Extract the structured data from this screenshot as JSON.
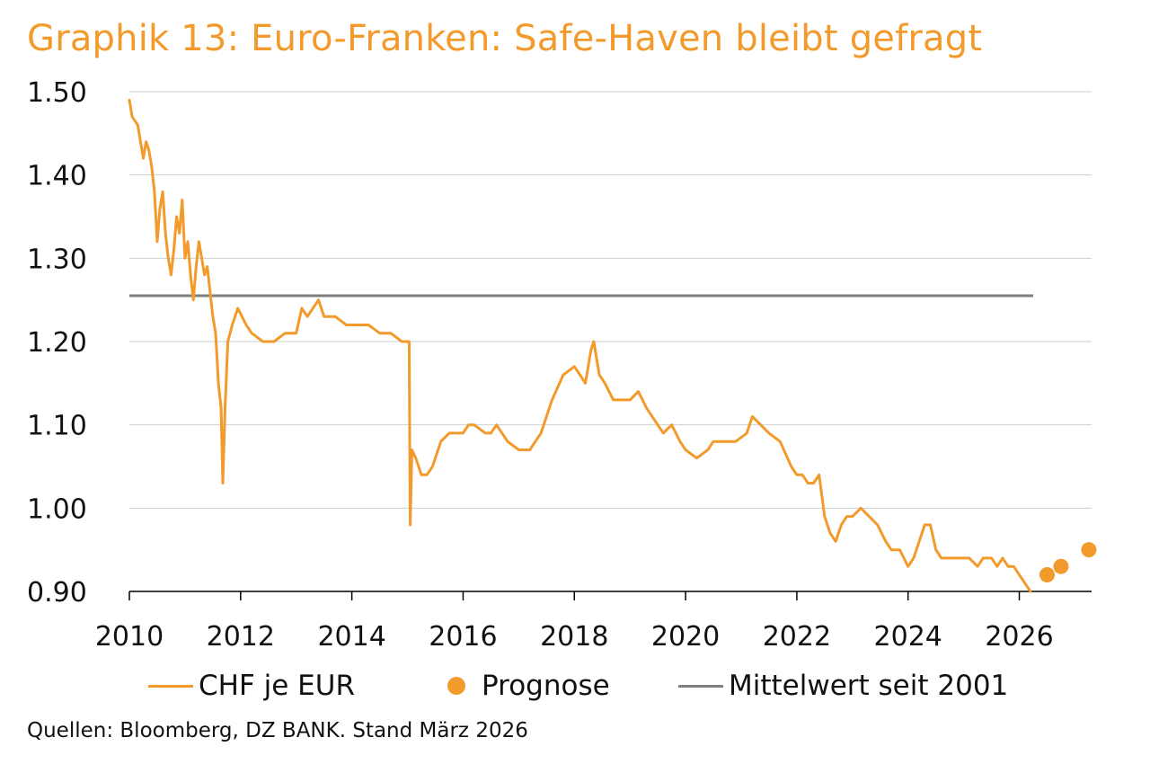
{
  "chart_data": {
    "type": "line",
    "title": "Graphik 13: Euro-Franken: Safe-Haven bleibt gefragt",
    "source": "Quellen: Bloomberg, DZ BANK. Stand März 2026",
    "xlim": [
      2010,
      2027.3
    ],
    "ylim": [
      0.9,
      1.5
    ],
    "x_ticks": [
      "2010",
      "2012",
      "2014",
      "2016",
      "2018",
      "2020",
      "2022",
      "2024",
      "2026"
    ],
    "y_ticks": [
      "1.50",
      "1.40",
      "1.30",
      "1.20",
      "1.10",
      "1.00",
      "0.90"
    ],
    "grid": true,
    "legend_position": "bottom",
    "colors": {
      "main": "#f39a2c",
      "mean": "#7f7f7f"
    },
    "series": [
      {
        "name": "CHF je EUR",
        "kind": "line",
        "points": [
          [
            2010.0,
            1.49
          ],
          [
            2010.05,
            1.47
          ],
          [
            2010.15,
            1.46
          ],
          [
            2010.2,
            1.44
          ],
          [
            2010.25,
            1.42
          ],
          [
            2010.3,
            1.44
          ],
          [
            2010.35,
            1.43
          ],
          [
            2010.4,
            1.41
          ],
          [
            2010.45,
            1.38
          ],
          [
            2010.5,
            1.32
          ],
          [
            2010.55,
            1.36
          ],
          [
            2010.6,
            1.38
          ],
          [
            2010.65,
            1.33
          ],
          [
            2010.7,
            1.3
          ],
          [
            2010.75,
            1.28
          ],
          [
            2010.8,
            1.31
          ],
          [
            2010.85,
            1.35
          ],
          [
            2010.9,
            1.33
          ],
          [
            2010.95,
            1.37
          ],
          [
            2011.0,
            1.3
          ],
          [
            2011.05,
            1.32
          ],
          [
            2011.1,
            1.28
          ],
          [
            2011.15,
            1.25
          ],
          [
            2011.2,
            1.29
          ],
          [
            2011.25,
            1.32
          ],
          [
            2011.3,
            1.3
          ],
          [
            2011.35,
            1.28
          ],
          [
            2011.4,
            1.29
          ],
          [
            2011.45,
            1.26
          ],
          [
            2011.5,
            1.23
          ],
          [
            2011.55,
            1.21
          ],
          [
            2011.6,
            1.15
          ],
          [
            2011.65,
            1.12
          ],
          [
            2011.68,
            1.03
          ],
          [
            2011.72,
            1.12
          ],
          [
            2011.77,
            1.2
          ],
          [
            2011.85,
            1.22
          ],
          [
            2011.95,
            1.24
          ],
          [
            2012.1,
            1.22
          ],
          [
            2012.2,
            1.21
          ],
          [
            2012.4,
            1.2
          ],
          [
            2012.6,
            1.2
          ],
          [
            2012.8,
            1.21
          ],
          [
            2013.0,
            1.21
          ],
          [
            2013.1,
            1.24
          ],
          [
            2013.2,
            1.23
          ],
          [
            2013.4,
            1.25
          ],
          [
            2013.5,
            1.23
          ],
          [
            2013.7,
            1.23
          ],
          [
            2013.9,
            1.22
          ],
          [
            2014.1,
            1.22
          ],
          [
            2014.3,
            1.22
          ],
          [
            2014.5,
            1.21
          ],
          [
            2014.7,
            1.21
          ],
          [
            2014.9,
            1.2
          ],
          [
            2015.03,
            1.2
          ],
          [
            2015.05,
            0.98
          ],
          [
            2015.08,
            1.07
          ],
          [
            2015.15,
            1.06
          ],
          [
            2015.25,
            1.04
          ],
          [
            2015.35,
            1.04
          ],
          [
            2015.45,
            1.05
          ],
          [
            2015.6,
            1.08
          ],
          [
            2015.75,
            1.09
          ],
          [
            2015.9,
            1.09
          ],
          [
            2016.0,
            1.09
          ],
          [
            2016.1,
            1.1
          ],
          [
            2016.2,
            1.1
          ],
          [
            2016.4,
            1.09
          ],
          [
            2016.5,
            1.09
          ],
          [
            2016.6,
            1.1
          ],
          [
            2016.8,
            1.08
          ],
          [
            2017.0,
            1.07
          ],
          [
            2017.2,
            1.07
          ],
          [
            2017.4,
            1.09
          ],
          [
            2017.6,
            1.13
          ],
          [
            2017.8,
            1.16
          ],
          [
            2018.0,
            1.17
          ],
          [
            2018.1,
            1.16
          ],
          [
            2018.2,
            1.15
          ],
          [
            2018.3,
            1.19
          ],
          [
            2018.35,
            1.2
          ],
          [
            2018.45,
            1.16
          ],
          [
            2018.55,
            1.15
          ],
          [
            2018.7,
            1.13
          ],
          [
            2018.9,
            1.13
          ],
          [
            2019.0,
            1.13
          ],
          [
            2019.15,
            1.14
          ],
          [
            2019.3,
            1.12
          ],
          [
            2019.5,
            1.1
          ],
          [
            2019.6,
            1.09
          ],
          [
            2019.75,
            1.1
          ],
          [
            2019.9,
            1.08
          ],
          [
            2020.0,
            1.07
          ],
          [
            2020.2,
            1.06
          ],
          [
            2020.4,
            1.07
          ],
          [
            2020.5,
            1.08
          ],
          [
            2020.7,
            1.08
          ],
          [
            2020.9,
            1.08
          ],
          [
            2021.1,
            1.09
          ],
          [
            2021.2,
            1.11
          ],
          [
            2021.35,
            1.1
          ],
          [
            2021.5,
            1.09
          ],
          [
            2021.7,
            1.08
          ],
          [
            2021.9,
            1.05
          ],
          [
            2022.0,
            1.04
          ],
          [
            2022.1,
            1.04
          ],
          [
            2022.2,
            1.03
          ],
          [
            2022.3,
            1.03
          ],
          [
            2022.4,
            1.04
          ],
          [
            2022.5,
            0.99
          ],
          [
            2022.6,
            0.97
          ],
          [
            2022.7,
            0.96
          ],
          [
            2022.8,
            0.98
          ],
          [
            2022.9,
            0.99
          ],
          [
            2023.0,
            0.99
          ],
          [
            2023.15,
            1.0
          ],
          [
            2023.3,
            0.99
          ],
          [
            2023.45,
            0.98
          ],
          [
            2023.6,
            0.96
          ],
          [
            2023.7,
            0.95
          ],
          [
            2023.85,
            0.95
          ],
          [
            2024.0,
            0.93
          ],
          [
            2024.1,
            0.94
          ],
          [
            2024.2,
            0.96
          ],
          [
            2024.3,
            0.98
          ],
          [
            2024.4,
            0.98
          ],
          [
            2024.5,
            0.95
          ],
          [
            2024.6,
            0.94
          ],
          [
            2024.75,
            0.94
          ],
          [
            2024.9,
            0.94
          ],
          [
            2025.0,
            0.94
          ],
          [
            2025.1,
            0.94
          ],
          [
            2025.25,
            0.93
          ],
          [
            2025.35,
            0.94
          ],
          [
            2025.5,
            0.94
          ],
          [
            2025.6,
            0.93
          ],
          [
            2025.7,
            0.94
          ],
          [
            2025.8,
            0.93
          ],
          [
            2025.9,
            0.93
          ],
          [
            2026.0,
            0.92
          ],
          [
            2026.1,
            0.91
          ],
          [
            2026.2,
            0.9
          ]
        ]
      },
      {
        "name": "Prognose",
        "kind": "dots",
        "points": [
          [
            2026.5,
            0.92
          ],
          [
            2026.75,
            0.93
          ],
          [
            2027.25,
            0.95
          ]
        ]
      },
      {
        "name": "Mittelwert seit 2001",
        "kind": "hline",
        "value": 1.255,
        "x_range": [
          2010,
          2026.25
        ]
      }
    ]
  }
}
